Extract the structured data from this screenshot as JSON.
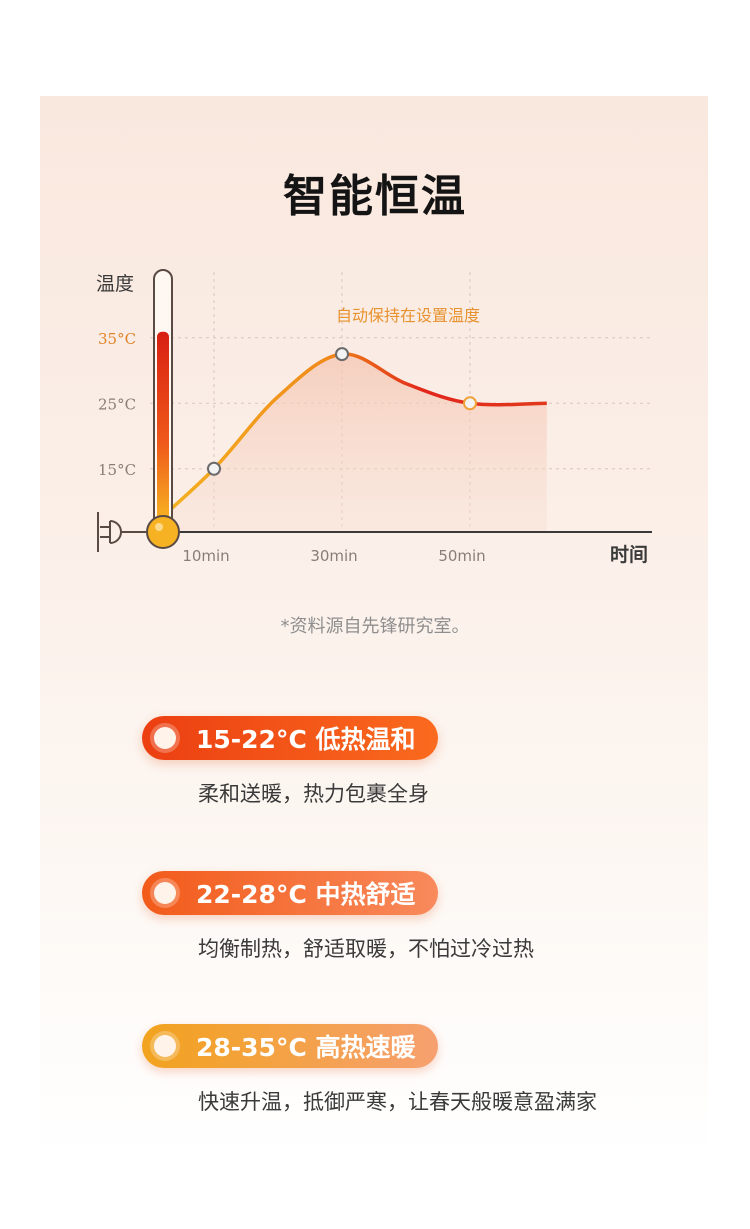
{
  "title": "智能恒温",
  "source_note": "*资料源自先锋研究室。",
  "chart_data": {
    "type": "line",
    "ylabel": "温度",
    "xlabel": "时间",
    "y_ticks": [
      "15°C",
      "25°C",
      "35°C"
    ],
    "y_tick_values": [
      15,
      25,
      35
    ],
    "x_ticks": [
      "10min",
      "30min",
      "50min"
    ],
    "x_tick_values": [
      10,
      30,
      50
    ],
    "annotation": "自动保持在设置温度",
    "curve": [
      {
        "x": 0,
        "y": 6
      },
      {
        "x": 10,
        "y": 15
      },
      {
        "x": 20,
        "y": 26
      },
      {
        "x": 30,
        "y": 32.5
      },
      {
        "x": 40,
        "y": 28
      },
      {
        "x": 50,
        "y": 25
      },
      {
        "x": 62,
        "y": 25
      }
    ],
    "markers": [
      {
        "x": 10,
        "y": 15
      },
      {
        "x": 30,
        "y": 32.5
      },
      {
        "x": 50,
        "y": 25
      }
    ],
    "thermometer_level": 35,
    "colors": {
      "low": "#f5b521",
      "high": "#e2261b",
      "highlight": "#f0a23a"
    }
  },
  "modes": [
    {
      "label": "15-22°C 低热温和",
      "desc": "柔和送暖，热力包裹全身",
      "color_from": "#ec3f12",
      "color_to": "#fa6a1e"
    },
    {
      "label": "22-28°C 中热舒适",
      "desc": "均衡制热，舒适取暖，不怕过冷过热",
      "color_from": "#f25b1a",
      "color_to": "#f98a5c"
    },
    {
      "label": "28-35°C 高热速暖",
      "desc": "快速升温，抵御严寒，让春天般暖意盈满家",
      "color_from": "#f2a31e",
      "color_to": "#f6a070"
    }
  ]
}
